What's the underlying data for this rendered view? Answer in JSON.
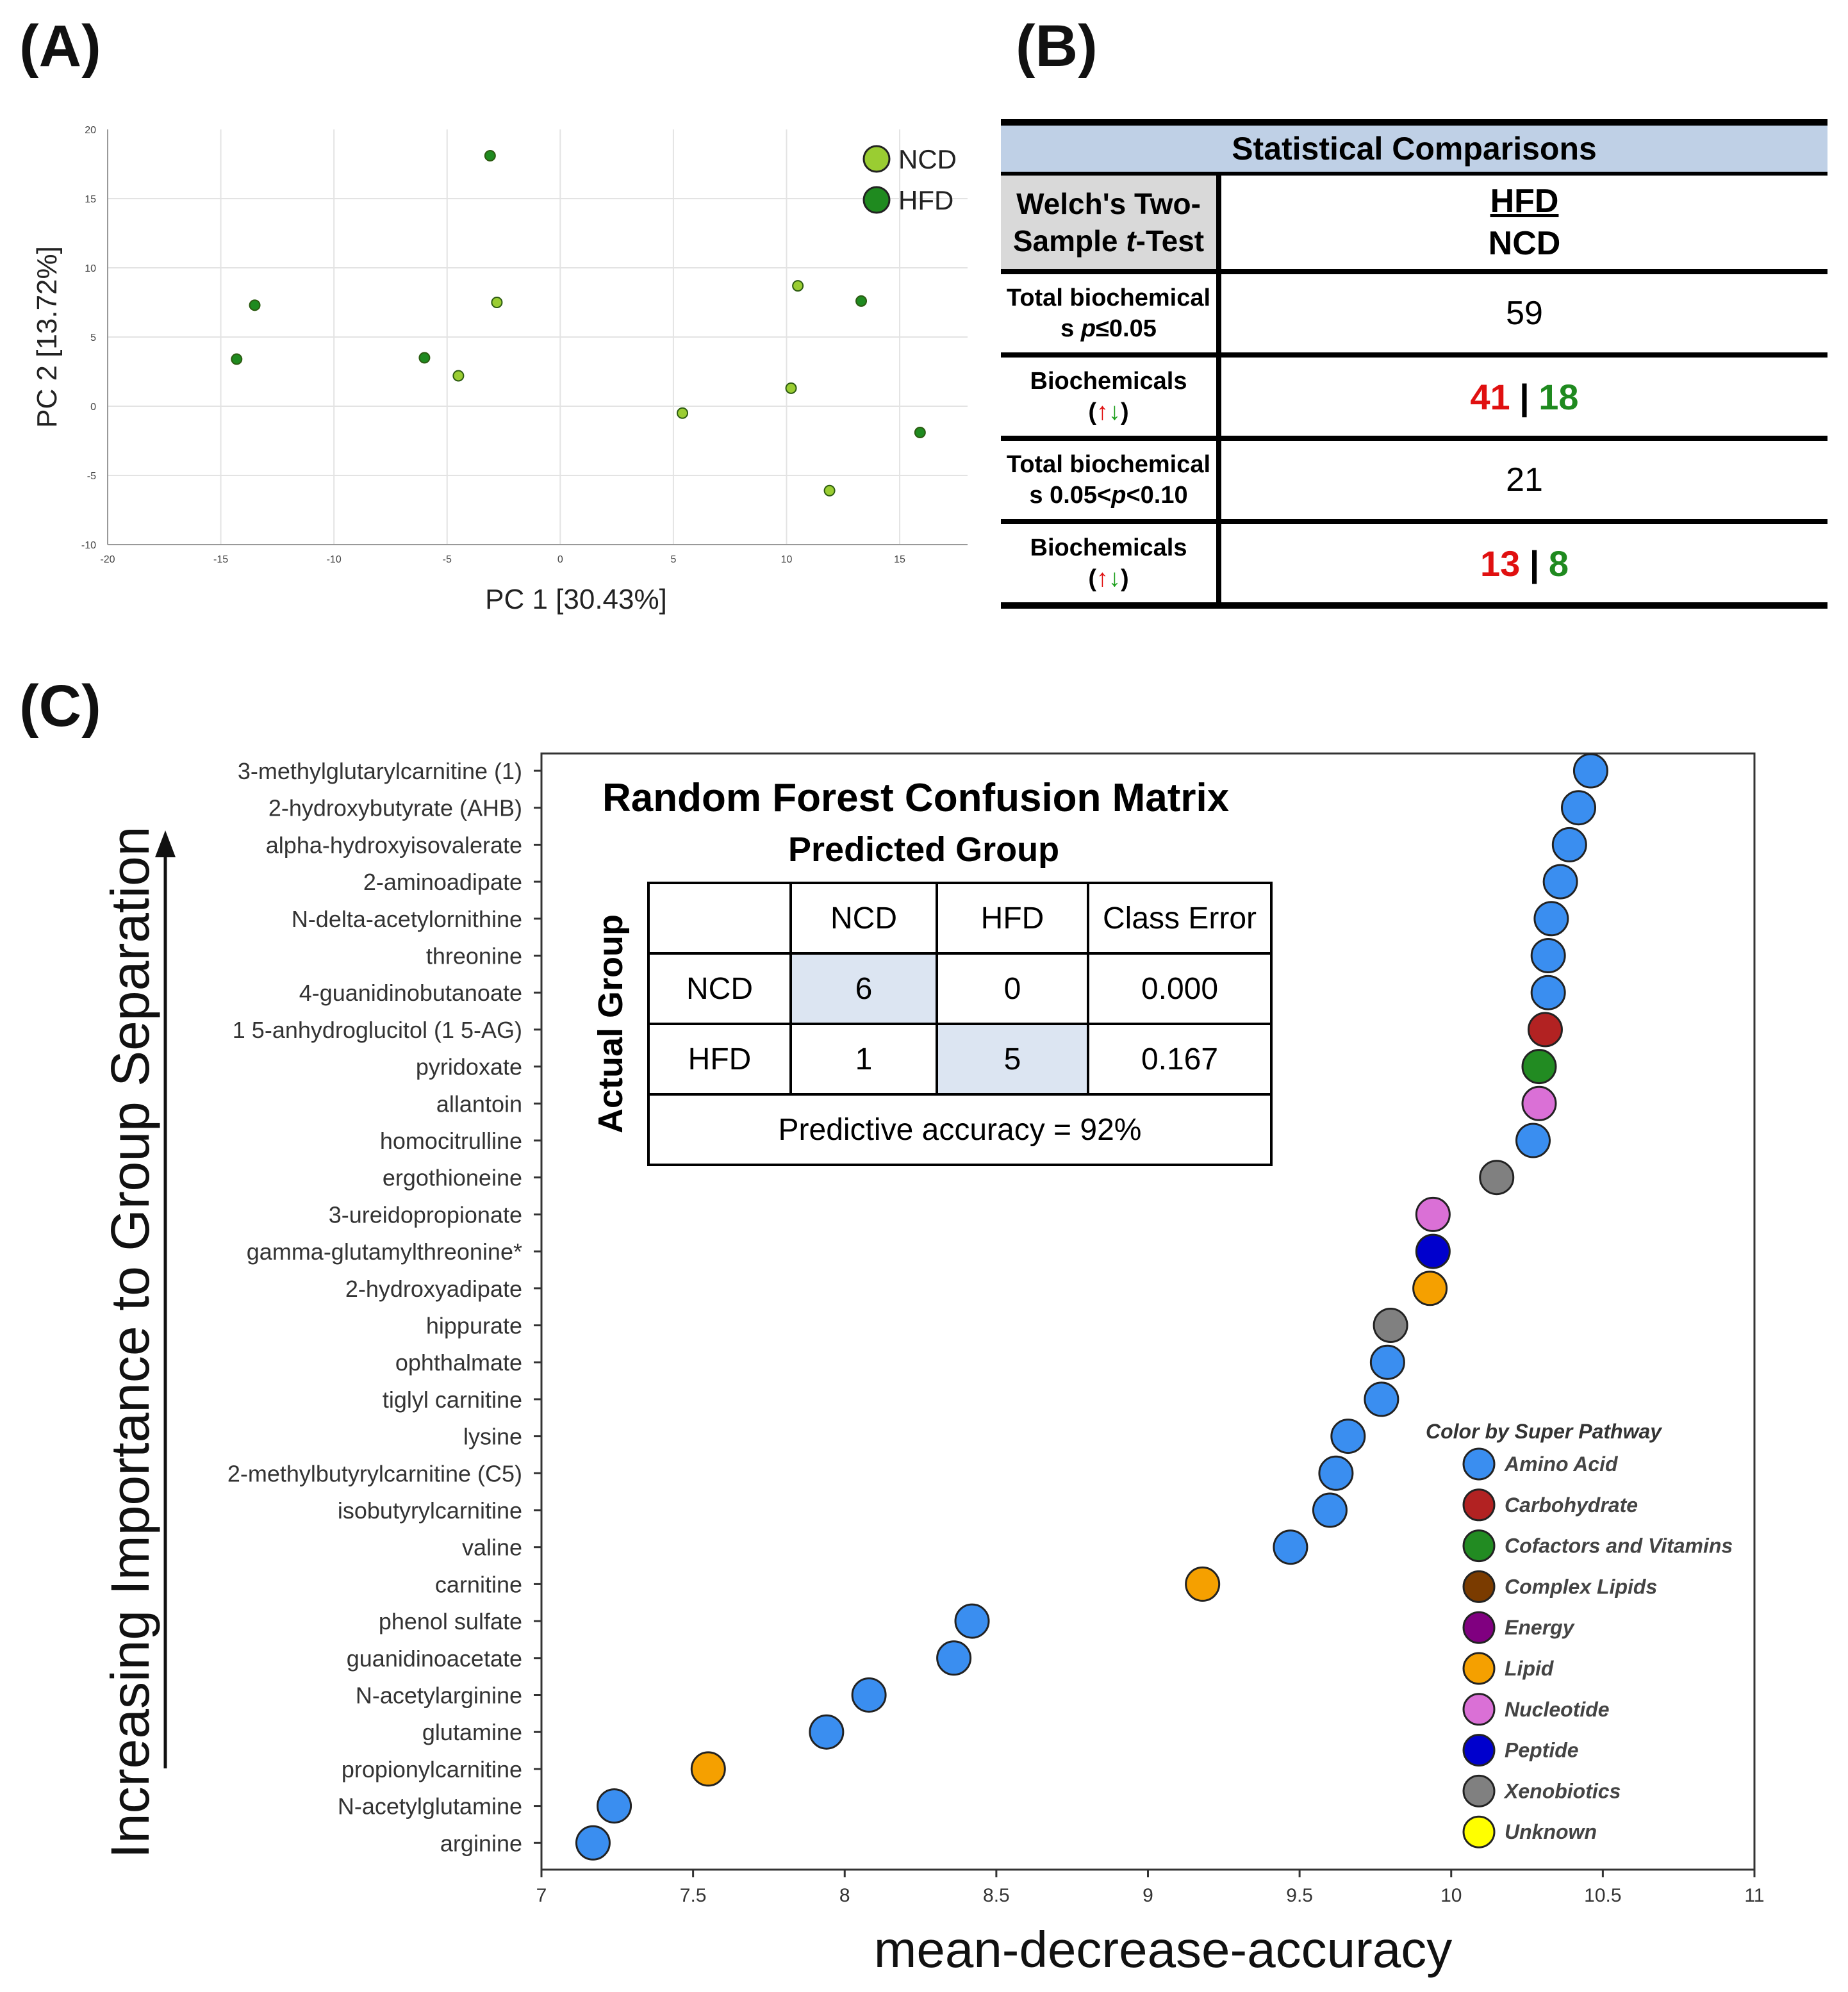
{
  "panels": {
    "a": "(A)",
    "b": "(B)",
    "c": "(C)"
  },
  "colors": {
    "ncd": "#9acd32",
    "hfd": "#1f8a1f",
    "Amino Acid": "#3a8ef0",
    "Carbohydrate": "#b22222",
    "Cofactors and Vitamins": "#228b22",
    "Complex Lipids": "#7a3b00",
    "Energy": "#800080",
    "Lipid": "#f5a000",
    "Nucleotide": "#da70d6",
    "Peptide": "#0000cd",
    "Xenobiotics": "#808080",
    "Unknown": "#ffff00"
  },
  "chart_data": [
    {
      "type": "scatter",
      "xlabel": "PC 1 [30.43%]",
      "ylabel": "PC 2 [13.72%]",
      "xlim": [
        -20,
        18
      ],
      "ylim": [
        -10,
        20
      ],
      "xticks": [
        "-20",
        "-15",
        "-10",
        "-5",
        "0",
        "5",
        "10",
        "15"
      ],
      "yticks": [
        "20",
        "15",
        "10",
        "5",
        "0",
        "-5",
        "-10"
      ],
      "grid": true,
      "legend": "top-right",
      "series": [
        {
          "name": "NCD",
          "x": [
            -2.8,
            -4.5,
            10.5,
            10.2,
            5.4,
            11.9
          ],
          "y": [
            7.5,
            2.2,
            8.7,
            1.3,
            -0.5,
            -6.1
          ]
        },
        {
          "name": "HFD",
          "x": [
            -3.1,
            -13.5,
            -14.3,
            -6.0,
            13.3,
            15.9
          ],
          "y": [
            18.1,
            7.3,
            3.4,
            3.5,
            7.6,
            -1.9
          ]
        }
      ]
    },
    {
      "type": "scatter",
      "xlabel": "mean-decrease-accuracy",
      "ylabel": "Increasing Importance to Group Separation",
      "xlim": [
        7,
        11
      ],
      "xticks": [
        "7",
        "7.5",
        "8",
        "8.5",
        "9",
        "9.5",
        "10",
        "10.5",
        "11"
      ],
      "legend_title": "Color by Super Pathway",
      "legend": [
        "Amino Acid",
        "Carbohydrate",
        "Cofactors and Vitamins",
        "Complex Lipids",
        "Energy",
        "Lipid",
        "Nucleotide",
        "Peptide",
        "Xenobiotics",
        "Unknown"
      ],
      "categories": [
        "3-methylglutarylcarnitine (1)",
        "2-hydroxybutyrate (AHB)",
        "alpha-hydroxyisovalerate",
        "2-aminoadipate",
        "N-delta-acetylornithine",
        "threonine",
        "4-guanidinobutanoate",
        "1 5-anhydroglucitol (1 5-AG)",
        "pyridoxate",
        "allantoin",
        "homocitrulline",
        "ergothioneine",
        "3-ureidopropionate",
        "gamma-glutamylthreonine*",
        "2-hydroxyadipate",
        "hippurate",
        "ophthalmate",
        "tiglyl carnitine",
        "lysine",
        "2-methylbutyrylcarnitine (C5)",
        "isobutyrylcarnitine",
        "valine",
        "carnitine",
        "phenol sulfate",
        "guanidinoacetate",
        "N-acetylarginine",
        "glutamine",
        "propionylcarnitine",
        "N-acetylglutamine",
        "arginine"
      ],
      "values": [
        10.46,
        10.42,
        10.39,
        10.36,
        10.33,
        10.32,
        10.32,
        10.31,
        10.29,
        10.29,
        10.27,
        10.15,
        9.94,
        9.94,
        9.93,
        9.8,
        9.79,
        9.77,
        9.66,
        9.62,
        9.6,
        9.47,
        9.18,
        8.42,
        8.36,
        8.08,
        7.94,
        7.55,
        7.24,
        7.17
      ],
      "pathways": [
        "Amino Acid",
        "Amino Acid",
        "Amino Acid",
        "Amino Acid",
        "Amino Acid",
        "Amino Acid",
        "Amino Acid",
        "Carbohydrate",
        "Cofactors and Vitamins",
        "Nucleotide",
        "Amino Acid",
        "Xenobiotics",
        "Nucleotide",
        "Peptide",
        "Lipid",
        "Xenobiotics",
        "Amino Acid",
        "Amino Acid",
        "Amino Acid",
        "Amino Acid",
        "Amino Acid",
        "Amino Acid",
        "Lipid",
        "Amino Acid",
        "Amino Acid",
        "Amino Acid",
        "Amino Acid",
        "Lipid",
        "Amino Acid",
        "Amino Acid"
      ]
    }
  ],
  "tableB": {
    "title": "Statistical Comparisons",
    "test_line1": "Welch's Two-",
    "test_line2_pre": "Sample ",
    "test_line2_t": "t",
    "test_line2_post": "-Test",
    "comp_top": "HFD",
    "comp_bottom": "NCD",
    "rows": [
      {
        "label1": "Total biochemical",
        "label2_pre": "s ",
        "label2_p": "p",
        "label2_post": "≤0.05",
        "value": "59"
      },
      {
        "label1": "Biochemicals",
        "arrow_open": "(",
        "arrow_up": "↑",
        "arrow_down": "↓",
        "arrow_close": ")",
        "up": "41",
        "sep": "|",
        "down": "18"
      },
      {
        "label1": "Total biochemical",
        "label2_pre": "s 0.05<",
        "label2_p": "p",
        "label2_post": "<0.10",
        "value": "21"
      },
      {
        "label1": "Biochemicals",
        "arrow_open": "(",
        "arrow_up": "↑",
        "arrow_down": "↓",
        "arrow_close": ")",
        "up": "13",
        "sep": "|",
        "down": "8"
      }
    ]
  },
  "confusion": {
    "title": "Random Forest Confusion Matrix",
    "predicted": "Predicted Group",
    "actual": "Actual Group",
    "headers": [
      "",
      "NCD",
      "HFD",
      "Class Error"
    ],
    "rows": [
      [
        "NCD",
        "6",
        "0",
        "0.000"
      ],
      [
        "HFD",
        "1",
        "5",
        "0.167"
      ]
    ],
    "accuracy": "Predictive accuracy = 92%"
  }
}
